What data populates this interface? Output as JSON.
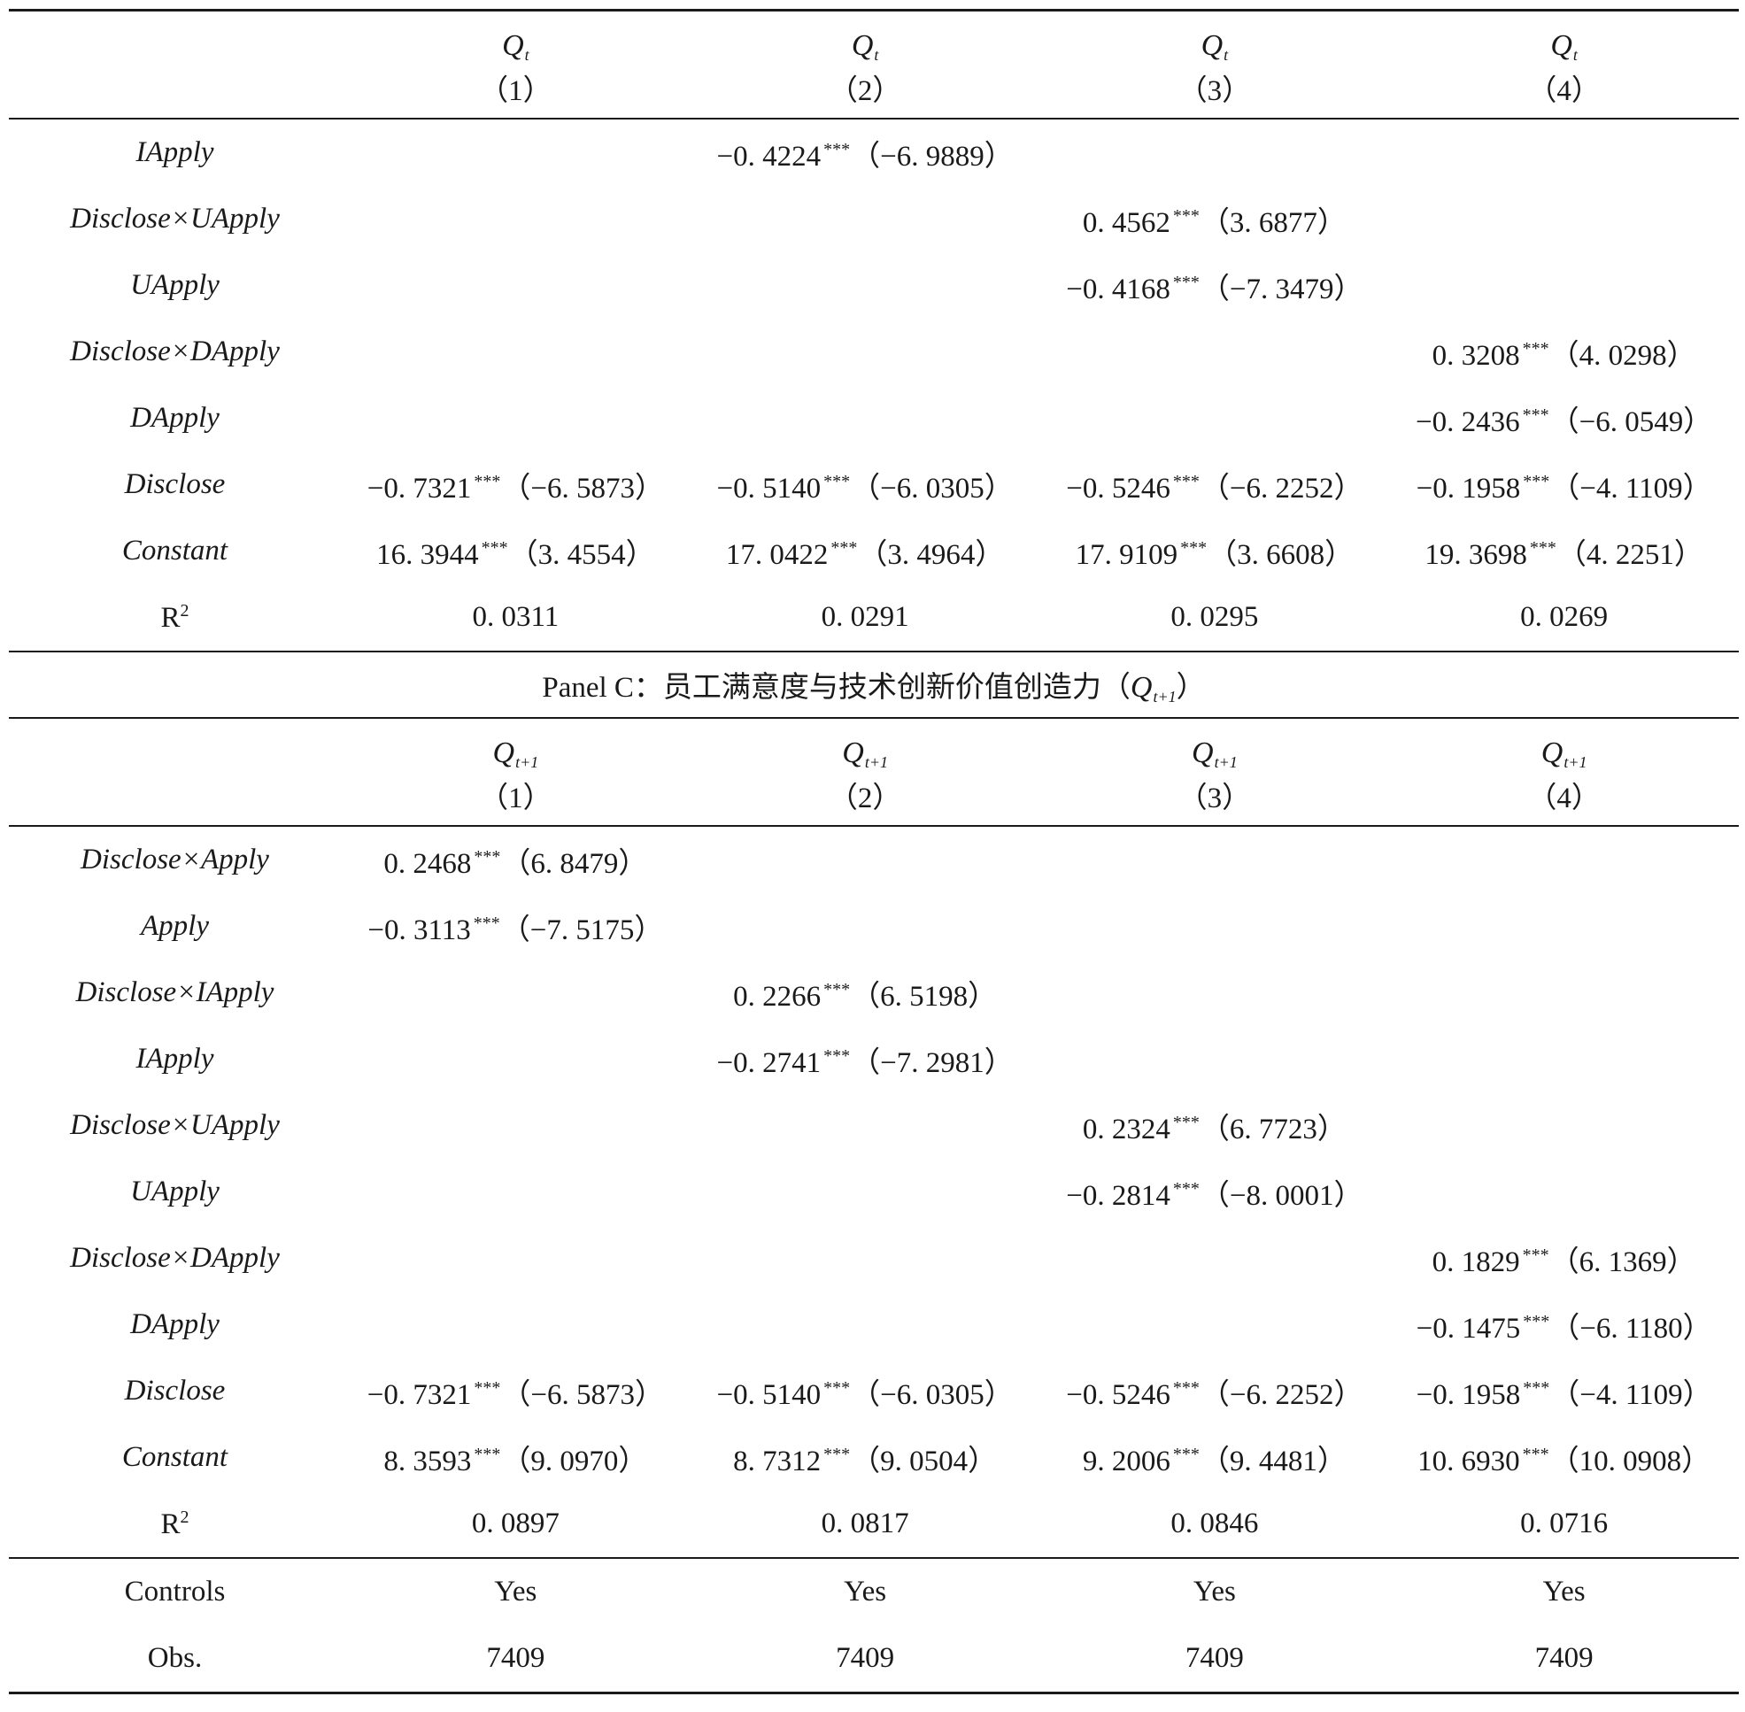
{
  "panelB": {
    "columns": [
      {
        "q": "Q",
        "sub": "t",
        "num": "（1）"
      },
      {
        "q": "Q",
        "sub": "t",
        "num": "（2）"
      },
      {
        "q": "Q",
        "sub": "t",
        "num": "（3）"
      },
      {
        "q": "Q",
        "sub": "t",
        "num": "（4）"
      }
    ],
    "rows": [
      {
        "label": "IApply",
        "cells": [
          {
            "coef": "",
            "stars": "",
            "t": ""
          },
          {
            "coef": "−0. 4224",
            "stars": "***",
            "t": "（−6. 9889）"
          },
          {
            "coef": "",
            "stars": "",
            "t": ""
          },
          {
            "coef": "",
            "stars": "",
            "t": ""
          }
        ]
      },
      {
        "label": "Disclose×UApply",
        "cells": [
          {
            "coef": "",
            "stars": "",
            "t": ""
          },
          {
            "coef": "",
            "stars": "",
            "t": ""
          },
          {
            "coef": "0. 4562",
            "stars": "***",
            "t": "（3. 6877）"
          },
          {
            "coef": "",
            "stars": "",
            "t": ""
          }
        ]
      },
      {
        "label": "UApply",
        "cells": [
          {
            "coef": "",
            "stars": "",
            "t": ""
          },
          {
            "coef": "",
            "stars": "",
            "t": ""
          },
          {
            "coef": "−0. 4168",
            "stars": "***",
            "t": "（−7. 3479）"
          },
          {
            "coef": "",
            "stars": "",
            "t": ""
          }
        ]
      },
      {
        "label": "Disclose×DApply",
        "cells": [
          {
            "coef": "",
            "stars": "",
            "t": ""
          },
          {
            "coef": "",
            "stars": "",
            "t": ""
          },
          {
            "coef": "",
            "stars": "",
            "t": ""
          },
          {
            "coef": "0. 3208",
            "stars": "***",
            "t": "（4. 0298）"
          }
        ]
      },
      {
        "label": "DApply",
        "cells": [
          {
            "coef": "",
            "stars": "",
            "t": ""
          },
          {
            "coef": "",
            "stars": "",
            "t": ""
          },
          {
            "coef": "",
            "stars": "",
            "t": ""
          },
          {
            "coef": "−0. 2436",
            "stars": "***",
            "t": "（−6. 0549）"
          }
        ]
      },
      {
        "label": "Disclose",
        "cells": [
          {
            "coef": "−0. 7321",
            "stars": "***",
            "t": "（−6. 5873）"
          },
          {
            "coef": "−0. 5140",
            "stars": "***",
            "t": "（−6. 0305）"
          },
          {
            "coef": "−0. 5246",
            "stars": "***",
            "t": "（−6. 2252）"
          },
          {
            "coef": "−0. 1958",
            "stars": "***",
            "t": "（−4. 1109）"
          }
        ]
      },
      {
        "label": "Constant",
        "cells": [
          {
            "coef": "16. 3944",
            "stars": "***",
            "t": "（3. 4554）"
          },
          {
            "coef": "17. 0422",
            "stars": "***",
            "t": "（3. 4964）"
          },
          {
            "coef": "17. 9109",
            "stars": "***",
            "t": "（3. 6608）"
          },
          {
            "coef": "19. 3698",
            "stars": "***",
            "t": "（4. 2251）"
          }
        ]
      }
    ],
    "r2": {
      "label": "R",
      "sup": "2",
      "values": [
        "0. 0311",
        "0. 0291",
        "0. 0295",
        "0. 0269"
      ]
    }
  },
  "panelC": {
    "title_prefix": "Panel C：员工满意度与技术创新价值创造力（",
    "title_q": "Q",
    "title_sub": "t+1",
    "title_suffix": "）",
    "columns": [
      {
        "q": "Q",
        "sub": "t+1",
        "num": "（1）"
      },
      {
        "q": "Q",
        "sub": "t+1",
        "num": "（2）"
      },
      {
        "q": "Q",
        "sub": "t+1",
        "num": "（3）"
      },
      {
        "q": "Q",
        "sub": "t+1",
        "num": "（4）"
      }
    ],
    "rows": [
      {
        "label": "Disclose×Apply",
        "cells": [
          {
            "coef": "0. 2468",
            "stars": "***",
            "t": "（6. 8479）"
          },
          {
            "coef": "",
            "stars": "",
            "t": ""
          },
          {
            "coef": "",
            "stars": "",
            "t": ""
          },
          {
            "coef": "",
            "stars": "",
            "t": ""
          }
        ]
      },
      {
        "label": "Apply",
        "cells": [
          {
            "coef": "−0. 3113",
            "stars": "***",
            "t": "（−7. 5175）"
          },
          {
            "coef": "",
            "stars": "",
            "t": ""
          },
          {
            "coef": "",
            "stars": "",
            "t": ""
          },
          {
            "coef": "",
            "stars": "",
            "t": ""
          }
        ]
      },
      {
        "label": "Disclose×IApply",
        "cells": [
          {
            "coef": "",
            "stars": "",
            "t": ""
          },
          {
            "coef": "0. 2266",
            "stars": "***",
            "t": "（6. 5198）"
          },
          {
            "coef": "",
            "stars": "",
            "t": ""
          },
          {
            "coef": "",
            "stars": "",
            "t": ""
          }
        ]
      },
      {
        "label": "IApply",
        "cells": [
          {
            "coef": "",
            "stars": "",
            "t": ""
          },
          {
            "coef": "−0. 2741",
            "stars": "***",
            "t": "（−7. 2981）"
          },
          {
            "coef": "",
            "stars": "",
            "t": ""
          },
          {
            "coef": "",
            "stars": "",
            "t": ""
          }
        ]
      },
      {
        "label": "Disclose×UApply",
        "cells": [
          {
            "coef": "",
            "stars": "",
            "t": ""
          },
          {
            "coef": "",
            "stars": "",
            "t": ""
          },
          {
            "coef": "0. 2324",
            "stars": "***",
            "t": "（6. 7723）"
          },
          {
            "coef": "",
            "stars": "",
            "t": ""
          }
        ]
      },
      {
        "label": "UApply",
        "cells": [
          {
            "coef": "",
            "stars": "",
            "t": ""
          },
          {
            "coef": "",
            "stars": "",
            "t": ""
          },
          {
            "coef": "−0. 2814",
            "stars": "***",
            "t": "（−8. 0001）"
          },
          {
            "coef": "",
            "stars": "",
            "t": ""
          }
        ]
      },
      {
        "label": "Disclose×DApply",
        "cells": [
          {
            "coef": "",
            "stars": "",
            "t": ""
          },
          {
            "coef": "",
            "stars": "",
            "t": ""
          },
          {
            "coef": "",
            "stars": "",
            "t": ""
          },
          {
            "coef": "0. 1829",
            "stars": "***",
            "t": "（6. 1369）"
          }
        ]
      },
      {
        "label": "DApply",
        "cells": [
          {
            "coef": "",
            "stars": "",
            "t": ""
          },
          {
            "coef": "",
            "stars": "",
            "t": ""
          },
          {
            "coef": "",
            "stars": "",
            "t": ""
          },
          {
            "coef": "−0. 1475",
            "stars": "***",
            "t": "（−6. 1180）"
          }
        ]
      },
      {
        "label": "Disclose",
        "cells": [
          {
            "coef": "−0. 7321",
            "stars": "***",
            "t": "（−6. 5873）"
          },
          {
            "coef": "−0. 5140",
            "stars": "***",
            "t": "（−6. 0305）"
          },
          {
            "coef": "−0. 5246",
            "stars": "***",
            "t": "（−6. 2252）"
          },
          {
            "coef": "−0. 1958",
            "stars": "***",
            "t": "（−4. 1109）"
          }
        ]
      },
      {
        "label": "Constant",
        "cells": [
          {
            "coef": "8. 3593",
            "stars": "***",
            "t": "（9. 0970）"
          },
          {
            "coef": "8. 7312",
            "stars": "***",
            "t": "（9. 0504）"
          },
          {
            "coef": "9. 2006",
            "stars": "***",
            "t": "（9. 4481）"
          },
          {
            "coef": "10. 6930",
            "stars": "***",
            "t": "（10. 0908）"
          }
        ]
      }
    ],
    "r2": {
      "label": "R",
      "sup": "2",
      "values": [
        "0. 0897",
        "0. 0817",
        "0. 0846",
        "0. 0716"
      ]
    }
  },
  "footer": {
    "controls": {
      "label": "Controls",
      "values": [
        "Yes",
        "Yes",
        "Yes",
        "Yes"
      ]
    },
    "obs": {
      "label": "Obs.",
      "values": [
        "7409",
        "7409",
        "7409",
        "7409"
      ]
    }
  }
}
